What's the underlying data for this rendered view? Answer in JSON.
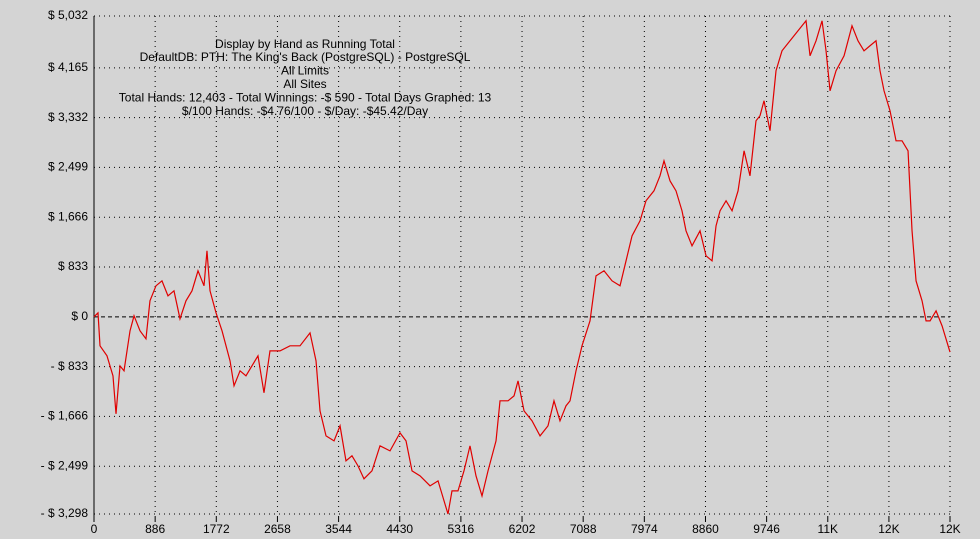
{
  "chart_data": {
    "type": "line",
    "title": "Display by Hand as Running Total",
    "annotations": [
      "DefaultDB: PTH: The King's Back (PostgreSQL) - PostgreSQL",
      "All Limits",
      "All Sites",
      "Total Hands: 12,403 - Total Winnings: -$ 590 - Total Days Graphed: 13",
      "$/100 Hands: -$4.76/100 - $/Day: -$45.42/Day"
    ],
    "x": [
      0,
      58,
      87,
      188,
      275,
      319,
      377,
      435,
      522,
      580,
      667,
      753,
      811,
      898,
      985,
      1072,
      1159,
      1246,
      1333,
      1420,
      1507,
      1594,
      1637,
      1681,
      1768,
      1855,
      1971,
      2029,
      2116,
      2202,
      2289,
      2376,
      2463,
      2550,
      2695,
      2840,
      2985,
      3130,
      3217,
      3275,
      3362,
      3478,
      3565,
      3651,
      3738,
      3825,
      3912,
      4028,
      4144,
      4289,
      4434,
      4521,
      4608,
      4724,
      4869,
      4985,
      5129,
      5187,
      5274,
      5361,
      5448,
      5535,
      5622,
      5709,
      5825,
      5883,
      5999,
      6086,
      6144,
      6231,
      6347,
      6463,
      6578,
      6665,
      6752,
      6839,
      6897,
      6984,
      7071,
      7187,
      7274,
      7390,
      7506,
      7622,
      7709,
      7796,
      7912,
      7998,
      8114,
      8201,
      8259,
      8346,
      8433,
      8520,
      8578,
      8665,
      8781,
      8868,
      8955,
      9013,
      9071,
      9158,
      9245,
      9332,
      9419,
      9505,
      9592,
      9650,
      9708,
      9795,
      9882,
      9969,
      10085,
      10201,
      10317,
      10375,
      10462,
      10549,
      10607,
      10665,
      10752,
      10868,
      10983,
      11070,
      11157,
      11244,
      11331,
      11389,
      11447,
      11534,
      11621,
      11708,
      11795,
      11853,
      11911,
      11998,
      12056,
      12114,
      12201,
      12288,
      12403
    ],
    "series": [
      {
        "name": "Running Total",
        "color": "#e00000",
        "values": [
          0,
          67,
          -485,
          -652,
          -987,
          -1623,
          -820,
          -903,
          -234,
          17,
          -234,
          -368,
          268,
          519,
          602,
          351,
          435,
          -33,
          268,
          435,
          770,
          519,
          1104,
          435,
          67,
          -234,
          -736,
          -1154,
          -903,
          -987,
          -820,
          -652,
          -1271,
          -569,
          -569,
          -485,
          -485,
          -268,
          -736,
          -1573,
          -1991,
          -2075,
          -1824,
          -2409,
          -2325,
          -2493,
          -2710,
          -2576,
          -2158,
          -2242,
          -1941,
          -2075,
          -2576,
          -2660,
          -2827,
          -2744,
          -3298,
          -2911,
          -2911,
          -2576,
          -2158,
          -2660,
          -2995,
          -2576,
          -2075,
          -1405,
          -1405,
          -1322,
          -1071,
          -1573,
          -1740,
          -1991,
          -1824,
          -1405,
          -1740,
          -1489,
          -1405,
          -903,
          -485,
          -67,
          686,
          770,
          602,
          519,
          937,
          1355,
          1606,
          1941,
          2108,
          2359,
          2610,
          2275,
          2108,
          1773,
          1439,
          1188,
          1439,
          1021,
          937,
          1522,
          1773,
          1941,
          1773,
          2108,
          2777,
          2359,
          3279,
          3363,
          3614,
          3112,
          4116,
          4450,
          4617,
          4785,
          4952,
          4367,
          4617,
          4952,
          4450,
          3781,
          4116,
          4367,
          4868,
          4617,
          4450,
          4534,
          4617,
          4116,
          3781,
          3446,
          2944,
          2944,
          2777,
          1439,
          602,
          268,
          -67,
          -67,
          100,
          -151,
          -590
        ]
      }
    ],
    "xlim": [
      0,
      12403
    ],
    "xticks": [
      0,
      886,
      1772,
      2658,
      3544,
      4430,
      5316,
      6202,
      7088,
      7974,
      8860,
      9746,
      {
        "value": 10632,
        "label": "11K"
      },
      {
        "value": 11518,
        "label": "12K"
      },
      {
        "value": 12403,
        "label": "12K"
      }
    ],
    "ylim": [
      -3298,
      5032
    ],
    "yticks": [
      {
        "value": 5032,
        "label": "$ 5,032"
      },
      {
        "value": 4165,
        "label": "$ 4,165"
      },
      {
        "value": 3332,
        "label": "$ 3,332"
      },
      {
        "value": 2499,
        "label": "$ 2,499"
      },
      {
        "value": 1666,
        "label": "$ 1,666"
      },
      {
        "value": 833,
        "label": "$ 833"
      },
      {
        "value": 0,
        "label": "$ 0"
      },
      {
        "value": -833,
        "label": "- $ 833"
      },
      {
        "value": -1666,
        "label": "- $ 1,666"
      },
      {
        "value": -2499,
        "label": "- $ 2,499"
      },
      {
        "value": -3298,
        "label": "- $ 3,298"
      }
    ],
    "grid": true
  }
}
